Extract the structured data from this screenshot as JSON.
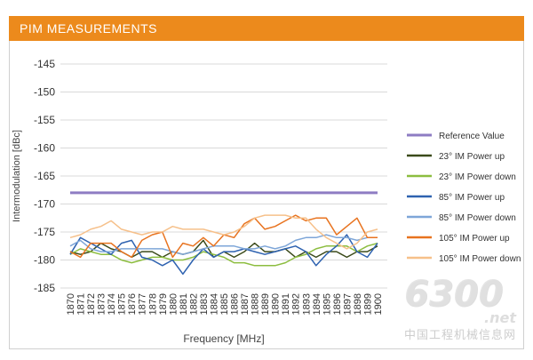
{
  "header": {
    "title": "PIM MEASUREMENTS"
  },
  "chart_data": {
    "type": "line",
    "title": "PIM MEASUREMENTS",
    "xlabel": "Frequency [MHz]",
    "ylabel": "Intermodulation [dBc]",
    "ylim": [
      -185,
      -145
    ],
    "yticks": [
      "-145",
      "-150",
      "-155",
      "-160",
      "-165",
      "-170",
      "-175",
      "-180",
      "-185"
    ],
    "categories": [
      "1870",
      "1871",
      "1872",
      "1873",
      "1874",
      "1875",
      "1876",
      "1877",
      "1878",
      "1879",
      "1880",
      "1881",
      "1882",
      "1883",
      "1884",
      "1885",
      "1886",
      "1887",
      "1888",
      "1889",
      "1890",
      "1891",
      "1892",
      "1893",
      "1894",
      "1895",
      "1896",
      "1897",
      "1898",
      "1899",
      "1900"
    ],
    "grid": true,
    "legend": "right",
    "series": [
      {
        "name": "Reference Value",
        "color": "#8e7cc3",
        "width": 3,
        "values": [
          -168,
          -168,
          -168,
          -168,
          -168,
          -168,
          -168,
          -168,
          -168,
          -168,
          -168,
          -168,
          -168,
          -168,
          -168,
          -168,
          -168,
          -168,
          -168,
          -168,
          -168,
          -168,
          -168,
          -168,
          -168,
          -168,
          -168,
          -168,
          -168,
          -168,
          -168
        ]
      },
      {
        "name": "23° IM Power up",
        "color": "#3b4a1a",
        "width": 1.5,
        "values": [
          -178.5,
          -179,
          -178.5,
          -177,
          -178,
          -178.5,
          -179.5,
          -178.5,
          -178.5,
          -179.5,
          -178.5,
          -179,
          -178.5,
          -176.5,
          -179.5,
          -178.5,
          -179.5,
          -178.5,
          -177,
          -178.5,
          -178.5,
          -178,
          -179.5,
          -178.5,
          -179.5,
          -178.5,
          -178.5,
          -179.5,
          -178.5,
          -178.5,
          -177.5
        ]
      },
      {
        "name": "23° IM Power down",
        "color": "#8cbd3f",
        "width": 1.5,
        "values": [
          -179,
          -178,
          -178.5,
          -179,
          -179,
          -180,
          -180.5,
          -180,
          -179.5,
          -179.5,
          -180,
          -180,
          -179.5,
          -178.5,
          -179,
          -179.5,
          -180.5,
          -180.5,
          -181,
          -181,
          -181,
          -180.5,
          -179.5,
          -179,
          -178,
          -177.5,
          -177.5,
          -177.5,
          -178.5,
          -177.5,
          -177
        ]
      },
      {
        "name": "85° IM Power up",
        "color": "#2e62b0",
        "width": 1.5,
        "values": [
          -179,
          -176,
          -177,
          -178,
          -179,
          -177,
          -176.5,
          -179.5,
          -180,
          -181,
          -180,
          -182.5,
          -180,
          -178,
          -179.5,
          -178.5,
          -178.5,
          -178,
          -178.5,
          -179,
          -178.5,
          -178,
          -177.5,
          -178.5,
          -181,
          -179,
          -177.5,
          -175.5,
          -178.5,
          -179.5,
          -177
        ]
      },
      {
        "name": "85° IM Power down",
        "color": "#7ea6d8",
        "width": 1.5,
        "values": [
          -177.5,
          -176.5,
          -178,
          -178.5,
          -178.5,
          -178,
          -178,
          -178,
          -178,
          -178,
          -178.5,
          -179,
          -178.5,
          -178,
          -177.5,
          -177.5,
          -177.5,
          -178,
          -178,
          -177.5,
          -178,
          -177.5,
          -176.5,
          -176,
          -176,
          -175.5,
          -176,
          -176,
          -176.5,
          -176,
          -176
        ]
      },
      {
        "name": "105° IM Power up",
        "color": "#e8731f",
        "width": 1.5,
        "values": [
          -178.5,
          -179.5,
          -177,
          -177,
          -177,
          -178.5,
          -179.5,
          -176.5,
          -175.5,
          -175,
          -179.5,
          -177,
          -177.5,
          -176,
          -177.5,
          -175.5,
          -176,
          -173.5,
          -172.5,
          -174.5,
          -174,
          -173,
          -172,
          -173,
          -172.5,
          -172.5,
          -175.5,
          -174,
          -172.5,
          -176,
          -176
        ]
      },
      {
        "name": "105° IM Power down",
        "color": "#f6c08a",
        "width": 1.5,
        "values": [
          -176,
          -175.5,
          -174.5,
          -174,
          -173,
          -174.5,
          -175,
          -175.5,
          -175,
          -175,
          -174,
          -174.5,
          -174.5,
          -174.5,
          -175,
          -175.5,
          -175,
          -174,
          -172.5,
          -172,
          -172,
          -172,
          -172.5,
          -172.5,
          -174.5,
          -176,
          -177,
          -178,
          -177,
          -175,
          -174.5
        ]
      }
    ]
  },
  "watermark": {
    "number": "6300",
    "suffix": ".net",
    "text": "中国工程机械信息网"
  }
}
